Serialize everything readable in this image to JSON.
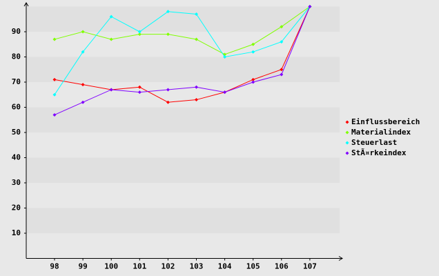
{
  "chart_data": {
    "type": "line",
    "categories": [
      98,
      99,
      100,
      101,
      102,
      103,
      104,
      105,
      106,
      107
    ],
    "series": [
      {
        "name": "Einflussbereich",
        "color": "#ff0000",
        "values": [
          71,
          69,
          67,
          68,
          62,
          63,
          66,
          71,
          75,
          100
        ]
      },
      {
        "name": "Materialindex",
        "color": "#80ff00",
        "values": [
          87,
          90,
          87,
          89,
          89,
          87,
          81,
          85,
          92,
          100
        ]
      },
      {
        "name": "Steuerlast",
        "color": "#00ffff",
        "values": [
          65,
          82,
          96,
          90,
          98,
          97,
          80,
          82,
          86,
          100
        ]
      },
      {
        "name": "StÃ¤rkeindex",
        "color": "#8000ff",
        "values": [
          57,
          62,
          67,
          66,
          67,
          68,
          66,
          70,
          73,
          100
        ]
      }
    ],
    "ylim": [
      0,
      100
    ],
    "yticks": [
      10,
      20,
      30,
      40,
      50,
      60,
      70,
      80,
      90
    ],
    "legend": "right"
  }
}
